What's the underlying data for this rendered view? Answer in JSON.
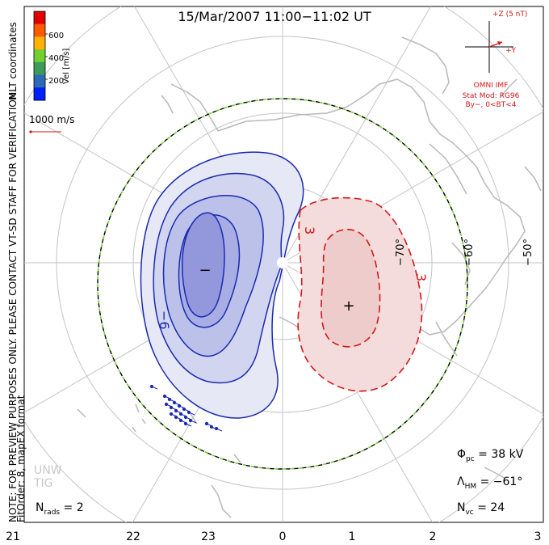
{
  "title": "15/Mar/2007  11:00−11:02  UT",
  "left_text_1": "NOTE: FOR PREVIEW PURPOSES ONLY. PLEASE CONTACT VT-SD STAFF FOR VERIFICATION.",
  "left_text_2": "FitOrder: 8, mapEX format",
  "coords_label": "MLT coordinates",
  "colorbar": {
    "label": "Vel [m/s]",
    "ticks": [
      "600",
      "400",
      "200"
    ],
    "colors": [
      "#e00000",
      "#ff5a00",
      "#ffb000",
      "#70d030",
      "#3c9a5a",
      "#2c6ab8",
      "#0020ff"
    ]
  },
  "ref_vector_label": "1000 m/s",
  "imf": {
    "z_label": "+Z (5 nT)",
    "y_label": "+Y",
    "source": "OMNI IMF",
    "model": "Stat Mod: RG96",
    "condition": "By−, 0<BT<4"
  },
  "lat_labels": [
    "−50°",
    "−60°",
    "−70°"
  ],
  "mlt_labels": [
    "21",
    "22",
    "23",
    "0",
    "1",
    "2",
    "3"
  ],
  "contours": {
    "neg_label": "−6",
    "pos_label_1": "3",
    "pos_label_2": "3",
    "neg_marker": "−",
    "pos_marker": "+"
  },
  "stats": {
    "phi_pc_sym": "Φ",
    "phi_pc_sub": "pc",
    "phi_pc_value": " = 38 kV",
    "lam_sym": "Λ",
    "lam_sub": "HM",
    "lam_value": " = −61°",
    "nvc_sym": "N",
    "nvc_sub": "vc",
    "nvc_value": " = 24",
    "nrads_sym": "N",
    "nrads_sub": "rads",
    "nrads_value": " = 2"
  },
  "watermark_1": "UNW",
  "watermark_2": "TIG",
  "colors": {
    "negative_contour": "#1a2ab0",
    "positive_contour": "#d01818",
    "land": "#b8b8b8",
    "grid": "#c4c4c4",
    "hm_boundary_dash": "#70d030",
    "vector": "#1a2ab0"
  }
}
